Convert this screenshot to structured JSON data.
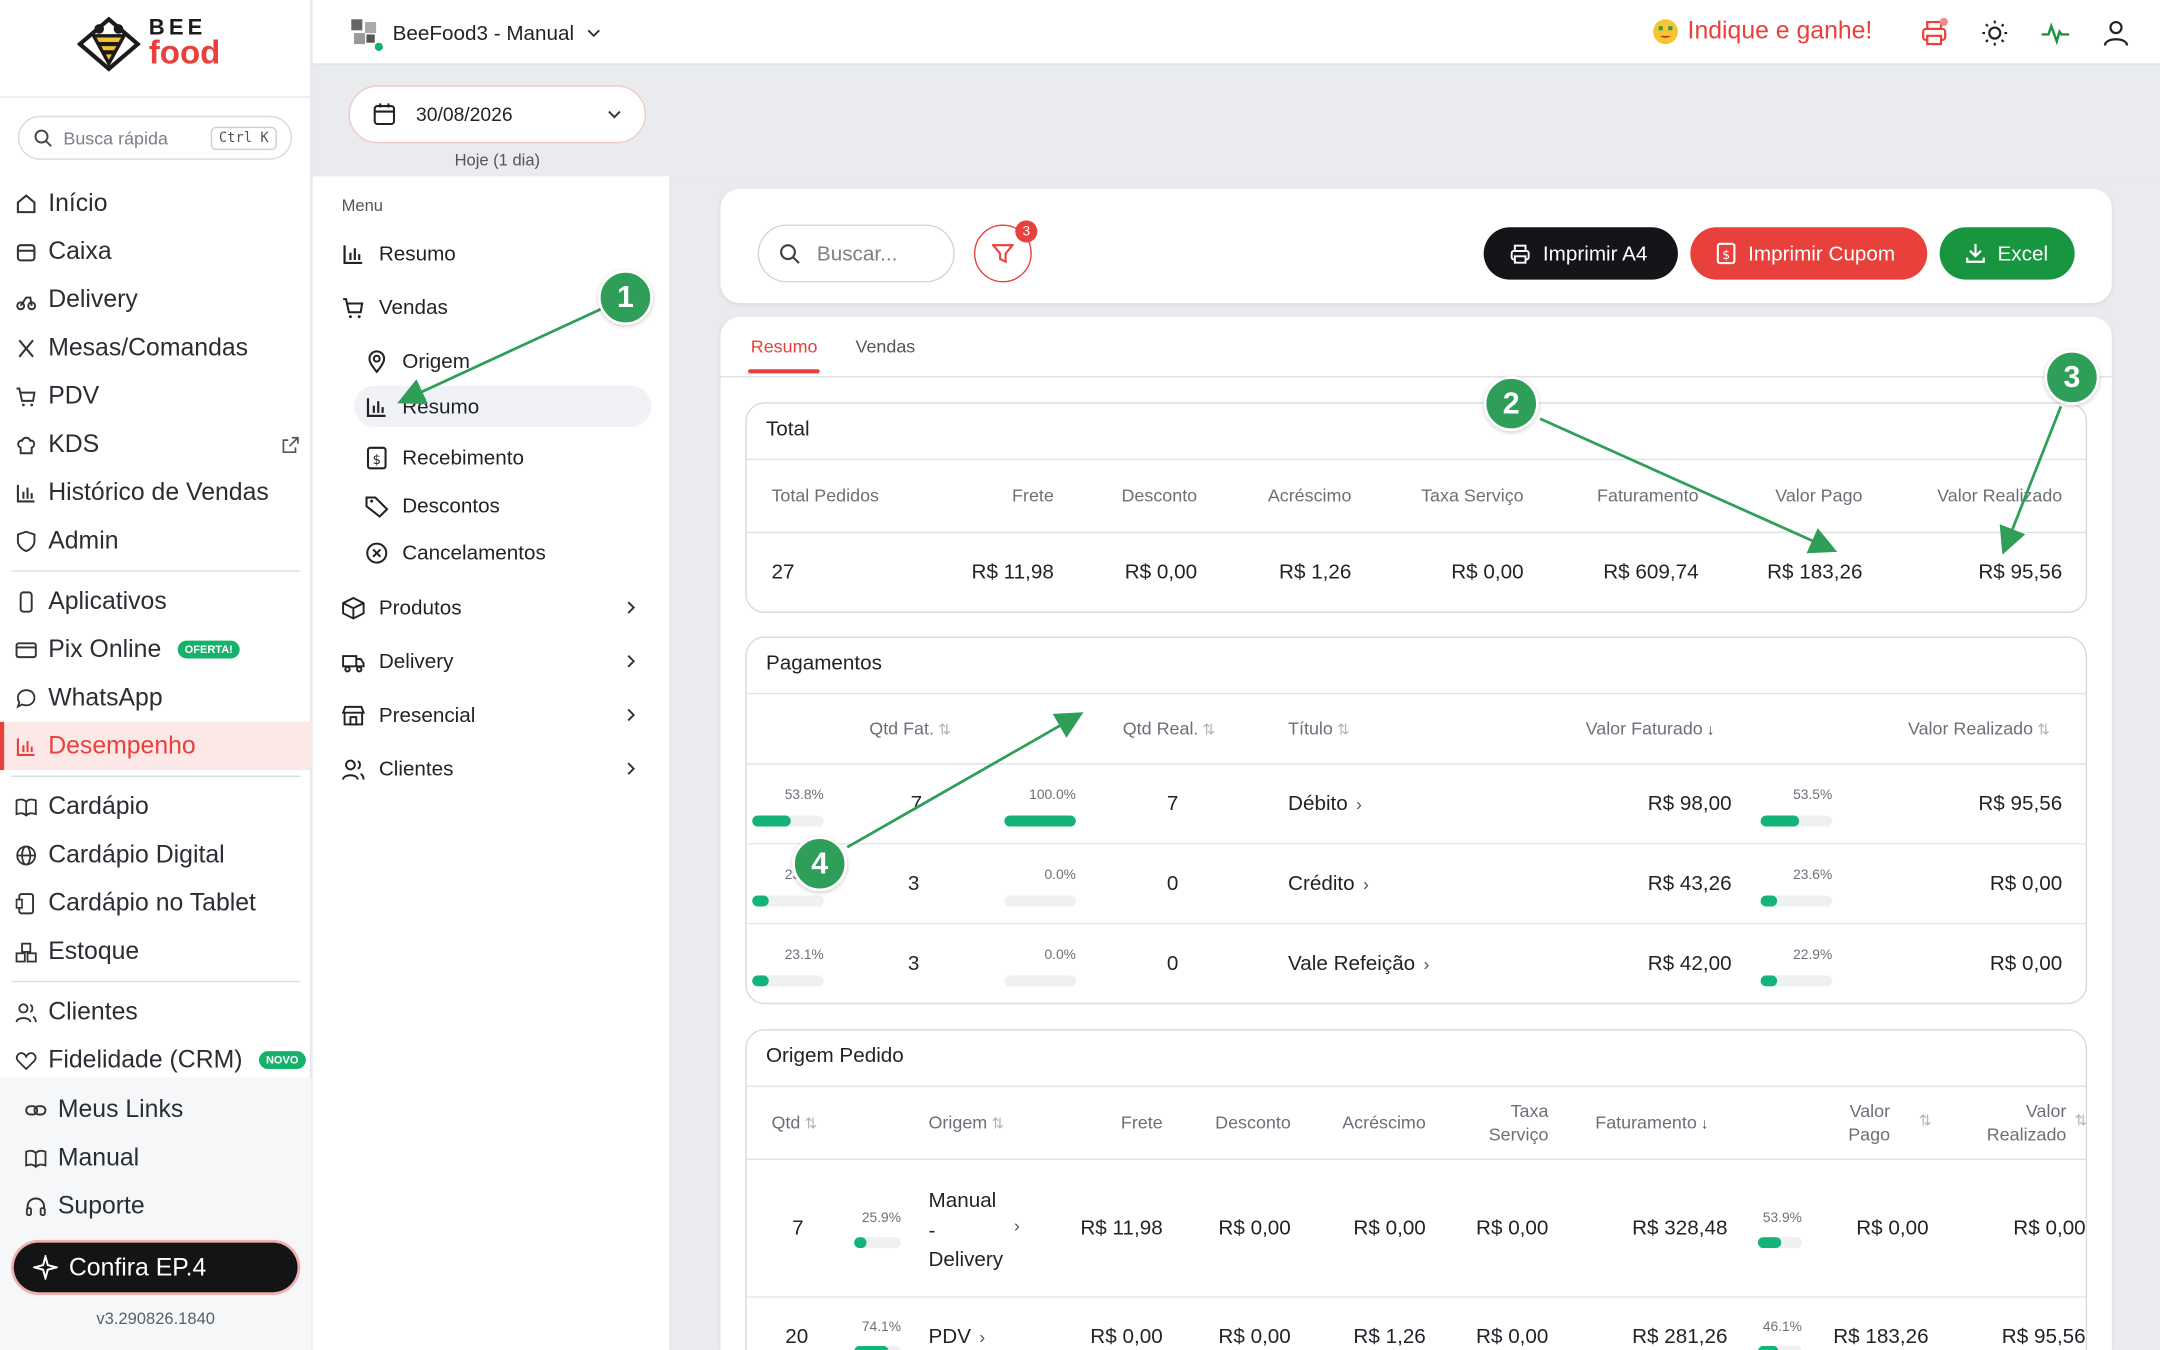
{
  "brand": {
    "top": "BEE",
    "bottom": "food"
  },
  "quick_search": {
    "placeholder": "Busca rápida",
    "shortcut": "Ctrl K"
  },
  "nav": {
    "inicio": "Início",
    "caixa": "Caixa",
    "delivery": "Delivery",
    "mesas": "Mesas/Comandas",
    "pdv": "PDV",
    "kds": "KDS",
    "historico": "Histórico de Vendas",
    "admin": "Admin",
    "aplicativos": "Aplicativos",
    "pix": "Pix Online",
    "pix_badge": "OFERTA!",
    "whatsapp": "WhatsApp",
    "desempenho": "Desempenho",
    "cardapio": "Cardápio",
    "cardapio_digital": "Cardápio Digital",
    "cardapio_tablet": "Cardápio no Tablet",
    "estoque": "Estoque",
    "clientes": "Clientes",
    "fidelidade": "Fidelidade (CRM)",
    "fidelidade_badge": "NOVO"
  },
  "bottom_nav": {
    "links": "Meus Links",
    "manual": "Manual",
    "suporte": "Suporte"
  },
  "confira": "Confira EP.4",
  "version": "v3.290826.1840",
  "topbar": {
    "store": "BeeFood3 - Manual",
    "indique": "Indique e ganhe!"
  },
  "date": {
    "value": "30/08/2026",
    "hint": "Hoje (1 dia)"
  },
  "menu": {
    "title": "Menu",
    "resumo": "Resumo",
    "vendas": "Vendas",
    "origem": "Origem",
    "resumo_sub": "Resumo",
    "recebimento": "Recebimento",
    "descontos": "Descontos",
    "cancelamentos": "Cancelamentos",
    "produtos": "Produtos",
    "delivery": "Delivery",
    "presencial": "Presencial",
    "clientes": "Clientes"
  },
  "toolbar": {
    "search_placeholder": "Buscar...",
    "filter_count": "3",
    "print_a4": "Imprimir A4",
    "print_cupom": "Imprimir Cupom",
    "excel": "Excel"
  },
  "tabs": {
    "resumo": "Resumo",
    "vendas": "Vendas"
  },
  "total": {
    "title": "Total",
    "headers": {
      "pedidos": "Total Pedidos",
      "frete": "Frete",
      "desconto": "Desconto",
      "acrescimo": "Acréscimo",
      "taxa": "Taxa Serviço",
      "faturamento": "Faturamento",
      "pago": "Valor Pago",
      "realizado": "Valor Realizado"
    },
    "values": {
      "pedidos": "27",
      "frete": "R$ 11,98",
      "desconto": "R$ 0,00",
      "acrescimo": "R$ 1,26",
      "taxa": "R$ 0,00",
      "faturamento": "R$ 609,74",
      "pago": "R$ 183,26",
      "realizado": "R$ 95,56"
    }
  },
  "pagamentos": {
    "title": "Pagamentos",
    "headers": {
      "qtd_fat": "Qtd Fat.",
      "qtd_real": "Qtd Real.",
      "titulo": "Título",
      "valor_fat": "Valor Faturado",
      "valor_real": "Valor Realizado"
    },
    "rows": [
      {
        "pct1": "53.8%",
        "fill1": 53.8,
        "qtd_fat": "7",
        "pct2": "100.0%",
        "fill2": 100,
        "qtd_real": "7",
        "titulo": "Débito",
        "valor_fat": "R$ 98,00",
        "pct3": "53.5%",
        "fill3": 53.5,
        "valor_real": "R$ 95,56"
      },
      {
        "pct1": "23.1%",
        "fill1": 23.1,
        "qtd_fat": "3",
        "pct2": "0.0%",
        "fill2": 0,
        "qtd_real": "0",
        "titulo": "Crédito",
        "valor_fat": "R$ 43,26",
        "pct3": "23.6%",
        "fill3": 23.6,
        "valor_real": "R$ 0,00"
      },
      {
        "pct1": "23.1%",
        "fill1": 23.1,
        "qtd_fat": "3",
        "pct2": "0.0%",
        "fill2": 0,
        "qtd_real": "0",
        "titulo": "Vale Refeição",
        "valor_fat": "R$ 42,00",
        "pct3": "22.9%",
        "fill3": 22.9,
        "valor_real": "R$ 0,00"
      }
    ]
  },
  "origem": {
    "title": "Origem Pedido",
    "headers": {
      "qtd": "Qtd",
      "origem": "Origem",
      "frete": "Frete",
      "desconto": "Desconto",
      "acrescimo": "Acréscimo",
      "taxa1": "Taxa",
      "taxa2": "Serviço",
      "faturamento": "Faturamento",
      "pago1": "Valor",
      "pago2": "Pago",
      "real1": "Valor",
      "real2": "Realizado"
    },
    "rows": [
      {
        "qtd": "7",
        "pct1": "25.9%",
        "fill1": 25.9,
        "origem1": "Manual",
        "origem2": "-",
        "origem3": "Delivery",
        "frete": "R$ 11,98",
        "desconto": "R$ 0,00",
        "acrescimo": "R$ 0,00",
        "taxa": "R$ 0,00",
        "faturamento": "R$ 328,48",
        "pct2": "53.9%",
        "fill2": 53.9,
        "pago": "R$ 0,00",
        "realizado": "R$ 0,00"
      },
      {
        "qtd": "20",
        "pct1": "74.1%",
        "fill1": 74.1,
        "origem1": "PDV",
        "frete": "R$ 0,00",
        "desconto": "R$ 0,00",
        "acrescimo": "R$ 1,26",
        "taxa": "R$ 0,00",
        "faturamento": "R$ 281,26",
        "pct2": "46.1%",
        "fill2": 46.1,
        "pago": "R$ 183,26",
        "realizado": "R$ 95,56"
      }
    ]
  },
  "annotations": [
    "1",
    "2",
    "3",
    "4"
  ]
}
